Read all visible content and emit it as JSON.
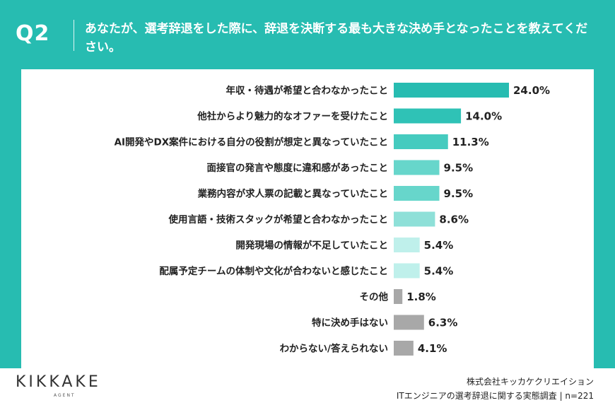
{
  "header": {
    "q_label": "Q2",
    "question": "あなたが、選考辞退をした際に、辞退を決断する最も大きな決め手となったことを教えてください。"
  },
  "chart_data": {
    "type": "bar",
    "orientation": "horizontal",
    "categories": [
      "年収・待遇が希望と合わなかったこと",
      "他社からより魅力的なオファーを受けたこと",
      "AI開発やDX案件における自分の役割が想定と異なっていたこと",
      "面接官の発言や態度に違和感があったこと",
      "業務内容が求人票の記載と異なっていたこと",
      "使用言語・技術スタックが希望と合わなかったこと",
      "開発現場の情報が不足していたこと",
      "配属予定チームの体制や文化が合わないと感じたこと",
      "その他",
      "特に決め手はない",
      "わからない/答えられない"
    ],
    "values": [
      24.0,
      14.0,
      11.3,
      9.5,
      9.5,
      8.6,
      5.4,
      5.4,
      1.8,
      6.3,
      4.1
    ],
    "value_labels": [
      "24.0%",
      "14.0%",
      "11.3%",
      "9.5%",
      "9.5%",
      "8.6%",
      "5.4%",
      "5.4%",
      "1.8%",
      "6.3%",
      "4.1%"
    ],
    "colors": [
      "#27bcb1",
      "#2fc2b6",
      "#45cbbf",
      "#67d6cb",
      "#67d6cb",
      "#8ee0d8",
      "#bff0eb",
      "#bff0eb",
      "#a8a8a8",
      "#a8a8a8",
      "#a8a8a8"
    ],
    "xlim": [
      0,
      24
    ],
    "grid": false,
    "legend": "none"
  },
  "footer": {
    "logo": "KIKKAKE",
    "logo_sub": "AGENT",
    "company": "株式会社キッカケクリエイション",
    "survey": "ITエンジニアの選考辞退に関する実態調査 | n=221"
  }
}
